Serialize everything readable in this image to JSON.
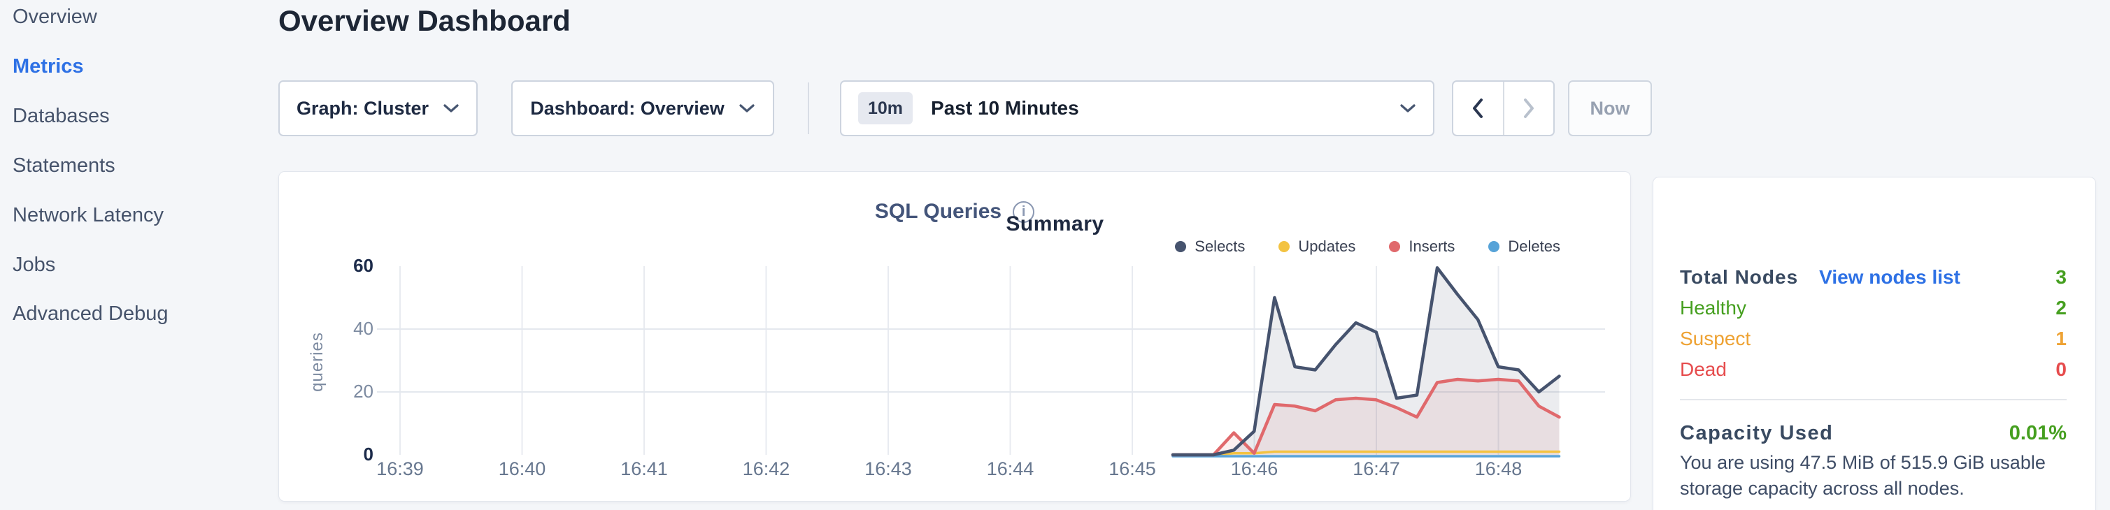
{
  "sidebar": {
    "items": [
      {
        "label": "Overview",
        "active": false
      },
      {
        "label": "Metrics",
        "active": true
      },
      {
        "label": "Databases",
        "active": false
      },
      {
        "label": "Statements",
        "active": false
      },
      {
        "label": "Network Latency",
        "active": false
      },
      {
        "label": "Jobs",
        "active": false
      },
      {
        "label": "Advanced Debug",
        "active": false
      }
    ]
  },
  "header": {
    "title": "Overview Dashboard"
  },
  "toolbar": {
    "graph_label": "Graph: Cluster",
    "dashboard_label": "Dashboard: Overview",
    "time_badge": "10m",
    "time_label": "Past 10 Minutes",
    "now_label": "Now"
  },
  "summary": {
    "title": "Summary",
    "rows": [
      {
        "label": "Total Nodes",
        "link": "View nodes list",
        "value": "3",
        "label_color": "#394a61",
        "value_color": "#459f1f",
        "bold": true
      },
      {
        "label": "Healthy",
        "link": "",
        "value": "2",
        "label_color": "#459f1f",
        "value_color": "#459f1f",
        "bold": false
      },
      {
        "label": "Suspect",
        "link": "",
        "value": "1",
        "label_color": "#eea233",
        "value_color": "#eea233",
        "bold": false
      },
      {
        "label": "Dead",
        "link": "",
        "value": "0",
        "label_color": "#e64c4d",
        "value_color": "#e64c4d",
        "bold": false
      }
    ],
    "capacity_label": "Capacity Used",
    "capacity_value": "0.01%",
    "capacity_desc": "You are using 47.5 MiB of 515.9 GiB usable storage capacity across all nodes."
  },
  "chart_data": {
    "type": "area",
    "title": "SQL Queries",
    "ylabel": "queries",
    "ylim": [
      0,
      60
    ],
    "yticks": [
      0,
      20,
      40,
      60
    ],
    "xticks": [
      "16:39",
      "16:40",
      "16:41",
      "16:42",
      "16:43",
      "16:44",
      "16:45",
      "16:46",
      "16:47",
      "16:48"
    ],
    "grid": true,
    "legend_position": "top-right",
    "x_start": "16:45:20",
    "x_step_seconds": 10,
    "series": [
      {
        "name": "Selects",
        "color": "#46536e",
        "fill": "rgba(70,83,110,0.11)",
        "values": [
          0,
          0,
          0,
          1.5,
          7.5,
          50,
          28,
          27,
          35,
          42,
          39,
          18,
          19,
          59.5,
          51,
          43,
          28,
          27,
          20,
          25
        ]
      },
      {
        "name": "Updates",
        "color": "#f3c342",
        "fill": "none",
        "values": [
          0,
          0,
          0,
          0.5,
          0.5,
          1,
          1,
          1,
          1,
          1,
          1,
          1,
          1,
          1,
          1,
          1,
          1,
          1,
          1,
          1
        ]
      },
      {
        "name": "Inserts",
        "color": "#e0696c",
        "fill": "rgba(224,105,108,0.10)",
        "values": [
          0,
          0,
          0,
          7,
          0.5,
          16,
          15.5,
          14,
          17.5,
          18,
          17.5,
          15,
          12,
          23,
          24,
          23.5,
          24,
          23.5,
          15.5,
          12
        ]
      },
      {
        "name": "Deletes",
        "color": "#57a3d8",
        "fill": "none",
        "values": [
          0,
          0,
          0,
          0,
          0,
          0,
          0,
          0,
          0,
          0,
          0,
          0,
          0,
          0,
          0,
          0,
          0,
          0,
          0,
          0
        ]
      }
    ]
  }
}
